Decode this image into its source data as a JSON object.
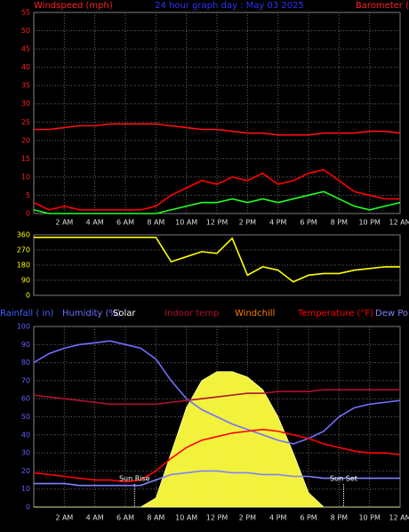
{
  "chart_data": [
    {
      "type": "line",
      "title": "24 hour graph day : May 03 2025",
      "y_label": "Windspeed (mph)",
      "y2_label": "Barometer (",
      "axis_color": "#ff2020",
      "grid": true,
      "x": [
        0,
        1,
        2,
        3,
        4,
        5,
        6,
        7,
        8,
        9,
        10,
        11,
        12,
        13,
        14,
        15,
        16,
        17,
        18,
        19,
        20,
        21,
        22,
        23,
        24
      ],
      "xlim": [
        0,
        24
      ],
      "xticks": [
        {
          "value": 2,
          "label": "2 AM"
        },
        {
          "value": 4,
          "label": "4 AM"
        },
        {
          "value": 6,
          "label": "6 AM"
        },
        {
          "value": 8,
          "label": "8 AM"
        },
        {
          "value": 10,
          "label": "10 AM"
        },
        {
          "value": 12,
          "label": "12 PM"
        },
        {
          "value": 14,
          "label": "2 PM"
        },
        {
          "value": 16,
          "label": "4 PM"
        },
        {
          "value": 18,
          "label": "6 PM"
        },
        {
          "value": 20,
          "label": "8 PM"
        },
        {
          "value": 22,
          "label": "10 PM"
        },
        {
          "value": 24,
          "label": "12 AM"
        }
      ],
      "ylim": [
        0,
        55
      ],
      "yticks": [
        0,
        5,
        10,
        15,
        20,
        25,
        30,
        35,
        40,
        45,
        50,
        55
      ],
      "series": [
        {
          "color": "#ff0000",
          "values": [
            3,
            1,
            2,
            1,
            1,
            1,
            1,
            1,
            2,
            5,
            7,
            9,
            8,
            10,
            9,
            11,
            8,
            9,
            11,
            12,
            9,
            6,
            5,
            4,
            4
          ]
        },
        {
          "color": "#20ff20",
          "values": [
            1,
            0,
            0,
            0,
            0,
            0,
            0,
            0,
            0,
            1,
            2,
            3,
            3,
            4,
            3,
            4,
            3,
            4,
            5,
            6,
            4,
            2,
            1,
            2,
            3
          ]
        },
        {
          "color": "#ff1010",
          "values": [
            23,
            23,
            23.5,
            24,
            24,
            24.5,
            24.5,
            24.5,
            24.5,
            24,
            23.5,
            23,
            23,
            22.5,
            22,
            22,
            21.5,
            21.5,
            21.5,
            22,
            22,
            22,
            22.5,
            22.5,
            22
          ]
        }
      ]
    },
    {
      "type": "line",
      "axis_color": "#ffff00",
      "grid": true,
      "x": [
        0,
        1,
        2,
        3,
        4,
        5,
        6,
        7,
        8,
        9,
        10,
        11,
        12,
        13,
        14,
        15,
        16,
        17,
        18,
        19,
        20,
        21,
        22,
        23,
        24
      ],
      "xlim": [
        0,
        24
      ],
      "ylim": [
        0,
        360
      ],
      "yticks": [
        0,
        90,
        180,
        270,
        360
      ],
      "series": [
        {
          "color": "#ffff00",
          "values": [
            345,
            345,
            345,
            345,
            345,
            345,
            345,
            345,
            345,
            200,
            230,
            260,
            250,
            340,
            120,
            170,
            150,
            80,
            120,
            130,
            130,
            150,
            160,
            170,
            170
          ]
        }
      ]
    },
    {
      "type": "line",
      "axis_color": "#6060ff",
      "grid": true,
      "x": [
        0,
        1,
        2,
        3,
        4,
        5,
        6,
        7,
        8,
        9,
        10,
        11,
        12,
        13,
        14,
        15,
        16,
        17,
        18,
        19,
        20,
        21,
        22,
        23,
        24
      ],
      "xlim": [
        0,
        24
      ],
      "xticks": [
        {
          "value": 2,
          "label": "2 AM"
        },
        {
          "value": 4,
          "label": "4 AM"
        },
        {
          "value": 6,
          "label": "6 AM"
        },
        {
          "value": 8,
          "label": "8 AM"
        },
        {
          "value": 10,
          "label": "10 AM"
        },
        {
          "value": 12,
          "label": "12 PM"
        },
        {
          "value": 14,
          "label": "2 PM"
        },
        {
          "value": 16,
          "label": "4 PM"
        },
        {
          "value": 18,
          "label": "6 PM"
        },
        {
          "value": 20,
          "label": "8 PM"
        },
        {
          "value": 22,
          "label": "10 PM"
        },
        {
          "value": 24,
          "label": "12 AM"
        }
      ],
      "ylim": [
        0,
        100
      ],
      "yticks": [
        0,
        10,
        20,
        30,
        40,
        50,
        60,
        70,
        80,
        90,
        100
      ],
      "series": [
        {
          "name": "Rainfall ( in)",
          "color": "#4060ff"
        },
        {
          "name": "Humidity (%)",
          "color": "#7070ff",
          "values": [
            80,
            85,
            88,
            90,
            91,
            92,
            90,
            88,
            82,
            70,
            60,
            54,
            50,
            46,
            43,
            40,
            37,
            35,
            38,
            42,
            50,
            55,
            57,
            58,
            59
          ]
        },
        {
          "name": "Solar",
          "color": "#ffff40",
          "label_color": "#ffffff",
          "fill": true,
          "values": [
            0,
            0,
            0,
            0,
            0,
            0,
            0,
            0,
            5,
            30,
            55,
            70,
            75,
            75,
            72,
            65,
            50,
            30,
            8,
            0,
            0,
            0,
            0,
            0,
            0
          ]
        },
        {
          "name": "Indoor temp",
          "color": "#b01030",
          "values": [
            62,
            61,
            60,
            59,
            58,
            57,
            57,
            57,
            57,
            58,
            59,
            60,
            61,
            62,
            63,
            63,
            64,
            64,
            64,
            65,
            65,
            65,
            65,
            65,
            65
          ]
        },
        {
          "name": "Windchill",
          "color": "#ff8000"
        },
        {
          "name": "Temperature (°F)",
          "color": "#ff0000",
          "values": [
            19,
            18,
            17,
            16,
            15,
            15,
            14,
            15,
            20,
            27,
            33,
            37,
            39,
            41,
            42,
            43,
            42,
            40,
            38,
            35,
            33,
            31,
            30,
            30,
            29
          ]
        },
        {
          "name": "Dew Po",
          "color": "#8080ff",
          "values": [
            13,
            13,
            13,
            12,
            12,
            12,
            12,
            12,
            15,
            18,
            19,
            20,
            20,
            19,
            19,
            18,
            18,
            17,
            17,
            16,
            16,
            16,
            16,
            16,
            16
          ]
        }
      ],
      "annotations": [
        {
          "text": "Sun Rise",
          "x": 6.6
        },
        {
          "text": "Sun Set",
          "x": 20.3
        }
      ]
    }
  ]
}
